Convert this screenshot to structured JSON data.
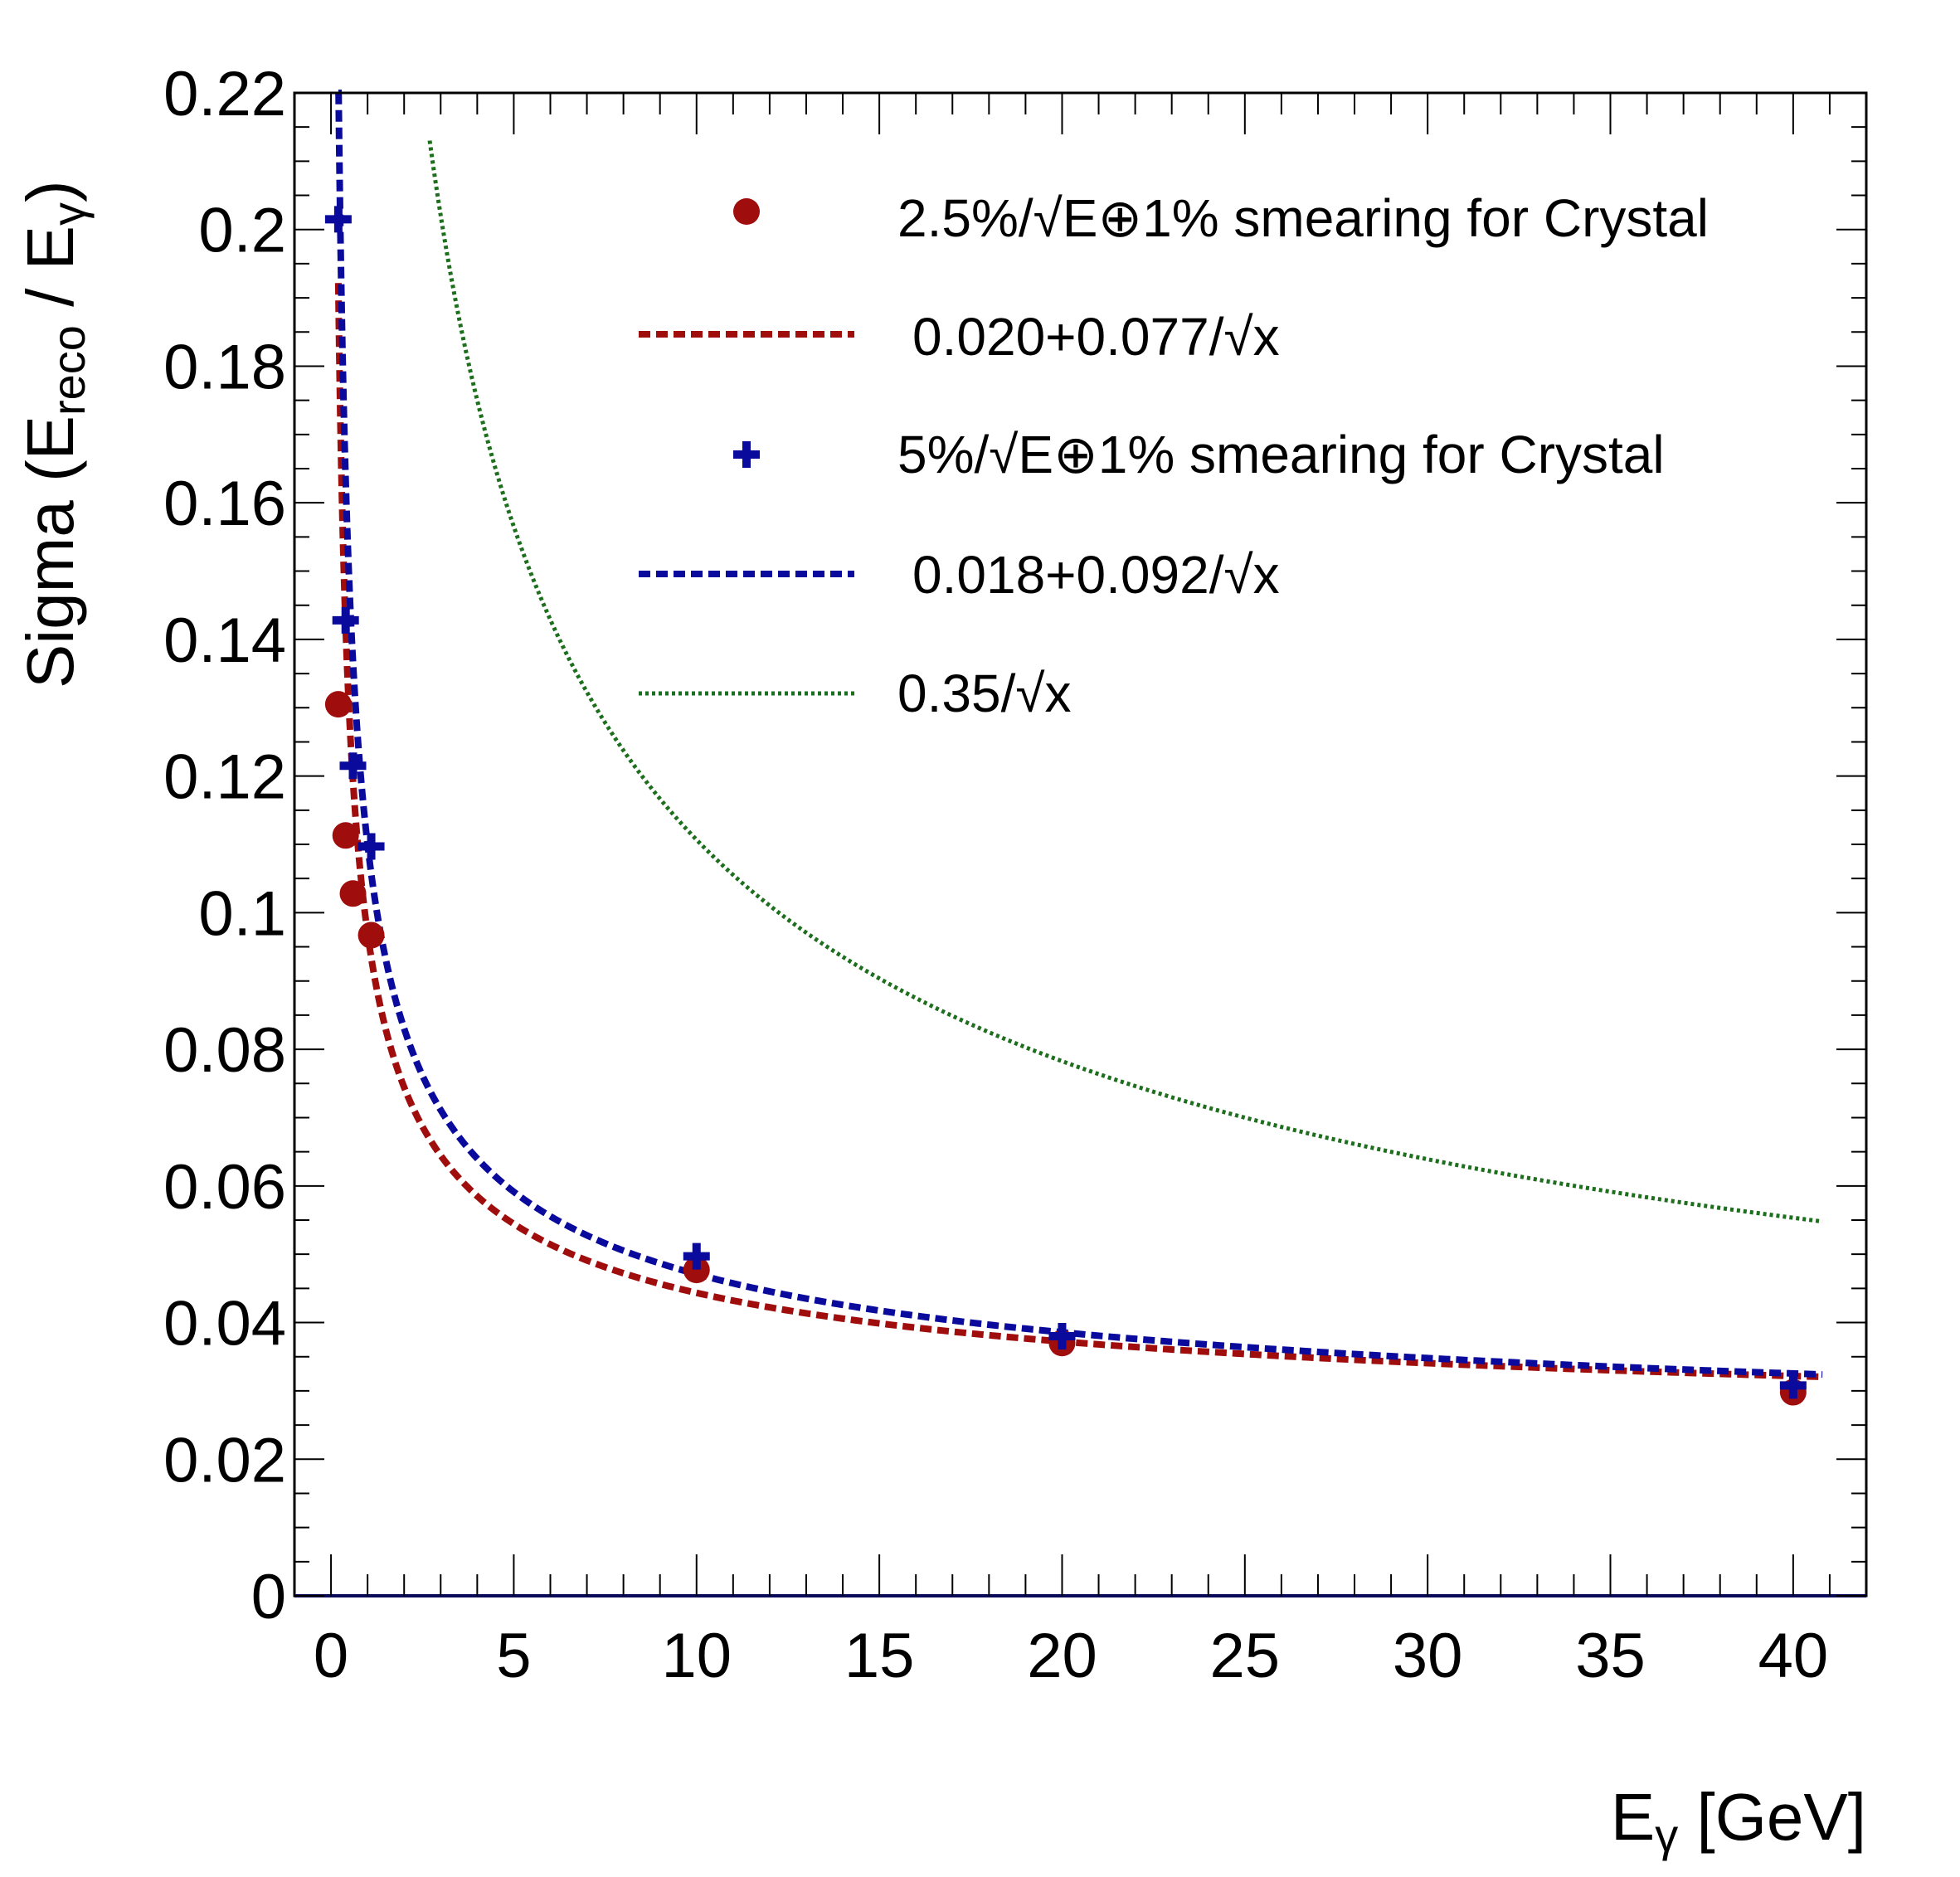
{
  "chart_data": {
    "type": "scatter",
    "ylabel_parts": {
      "main": "Sigma (E",
      "sub1": "reco",
      "mid": " / E",
      "sub2": "γ",
      "close": ")"
    },
    "xlabel_parts": {
      "main": "E",
      "sub": "γ",
      "rest": " [GeV]"
    },
    "xlim": [
      -1,
      42
    ],
    "ylim": [
      0,
      0.22
    ],
    "x_ticks": [
      0,
      5,
      10,
      15,
      20,
      25,
      30,
      35,
      40
    ],
    "x_tick_labels": [
      "0",
      "5",
      "10",
      "15",
      "20",
      "25",
      "30",
      "35",
      "40"
    ],
    "y_ticks": [
      0,
      0.02,
      0.04,
      0.06,
      0.08,
      0.1,
      0.12,
      0.14,
      0.16,
      0.18,
      0.2,
      0.22
    ],
    "y_tick_labels": [
      "0",
      "0.02",
      "0.04",
      "0.06",
      "0.08",
      "0.1",
      "0.12",
      "0.14",
      "0.16",
      "0.18",
      "0.2",
      "0.22"
    ],
    "series": [
      {
        "name": "2.5%/√E⊕1% smearing for Crystal",
        "kind": "points",
        "marker": "circle",
        "color": "#a00d0d",
        "x": [
          0.2,
          0.4,
          0.6,
          1.1,
          10,
          20,
          40
        ],
        "y": [
          0.1305,
          0.1113,
          0.1028,
          0.0967,
          0.0477,
          0.037,
          0.0298
        ]
      },
      {
        "name": "0.020+0.077/√x",
        "kind": "function",
        "style": "dashed",
        "color": "#a00d0d",
        "a": 0.02,
        "b": 0.077,
        "x_range": [
          0.2,
          40.8
        ]
      },
      {
        "name": "5%/√E⊕1% smearing for Crystal",
        "kind": "points",
        "marker": "cross",
        "color": "#0a0a9c",
        "x": [
          0.2,
          0.4,
          0.6,
          1.1,
          10,
          20,
          40
        ],
        "y": [
          0.2015,
          0.1428,
          0.1215,
          0.1097,
          0.0497,
          0.038,
          0.0308
        ]
      },
      {
        "name": "0.018+0.092/√x",
        "kind": "function",
        "style": "dashed",
        "color": "#0a0a9c",
        "a": 0.018,
        "b": 0.092,
        "x_range": [
          0.2,
          40.8
        ]
      },
      {
        "name": "0.35/√x",
        "kind": "function",
        "style": "dotted",
        "color": "#1d6e1d",
        "a": 0,
        "b": 0.35,
        "x_range": [
          2.7,
          40.8
        ]
      }
    ],
    "legend": {
      "position": "top-right",
      "entries": [
        "2.5%/√E⊕1% smearing for Crystal",
        "0.020+0.077/√x",
        "5%/√E⊕1% smearing for Crystal",
        "0.018+0.092/√x",
        "0.35/√x"
      ]
    }
  }
}
